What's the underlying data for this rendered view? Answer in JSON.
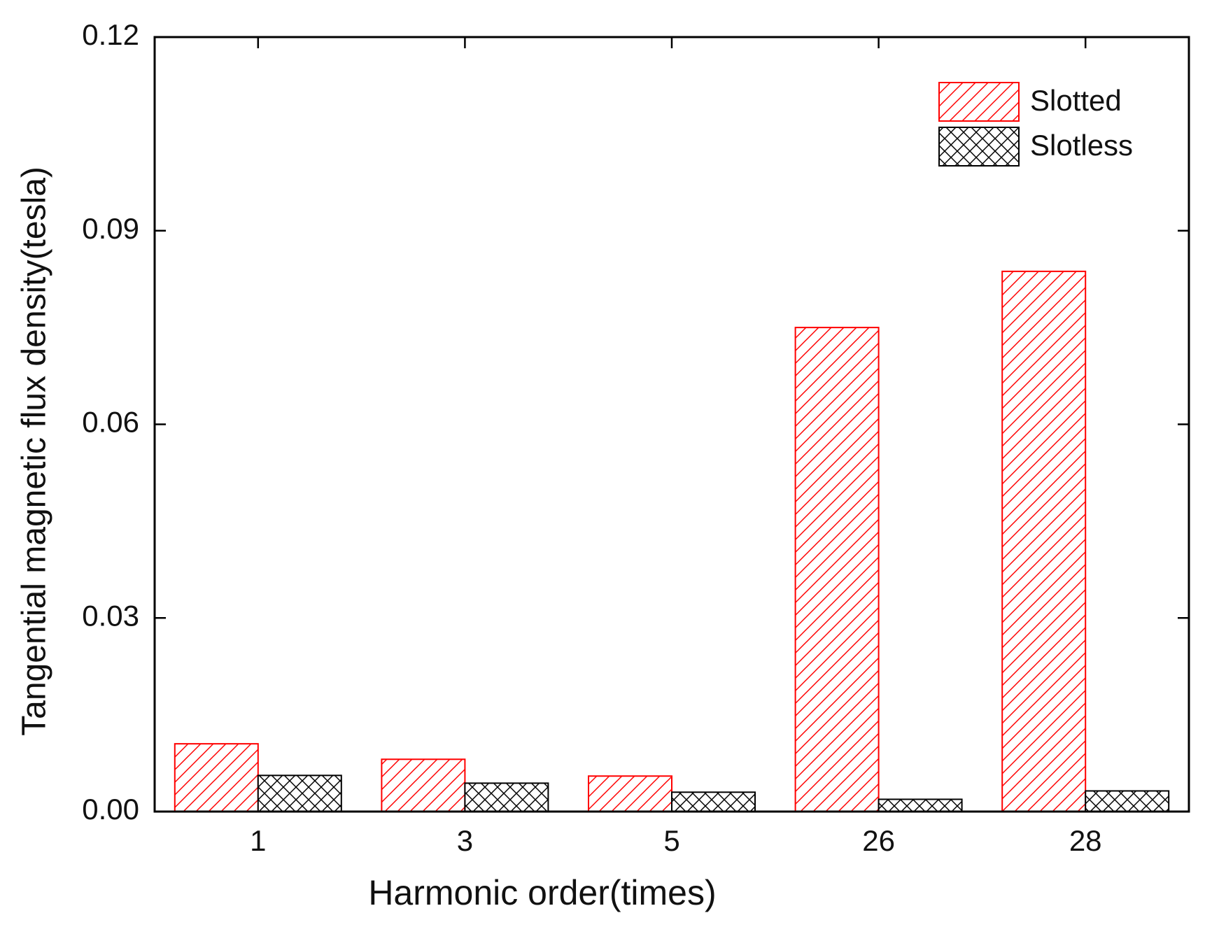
{
  "chart_data": {
    "type": "bar",
    "x_label": "Harmonic order(times)",
    "y_label": "Tangential magnetic flux density(tesla)",
    "categories": [
      "1",
      "3",
      "5",
      "26",
      "28"
    ],
    "series": [
      {
        "name": "Slotted",
        "color": "#ff0000",
        "hatch": "diagonal",
        "values": [
          0.0105,
          0.0081,
          0.0055,
          0.075,
          0.0837
        ]
      },
      {
        "name": "Slotless",
        "color": "#000000",
        "hatch": "cross",
        "values": [
          0.0056,
          0.0044,
          0.003,
          0.0019,
          0.0032
        ]
      }
    ],
    "ylim": [
      0,
      0.12
    ],
    "yticks": [
      {
        "value": 0,
        "label": "0.00"
      },
      0.03,
      0.06,
      0.09,
      0.12
    ],
    "legend": "upper right"
  }
}
